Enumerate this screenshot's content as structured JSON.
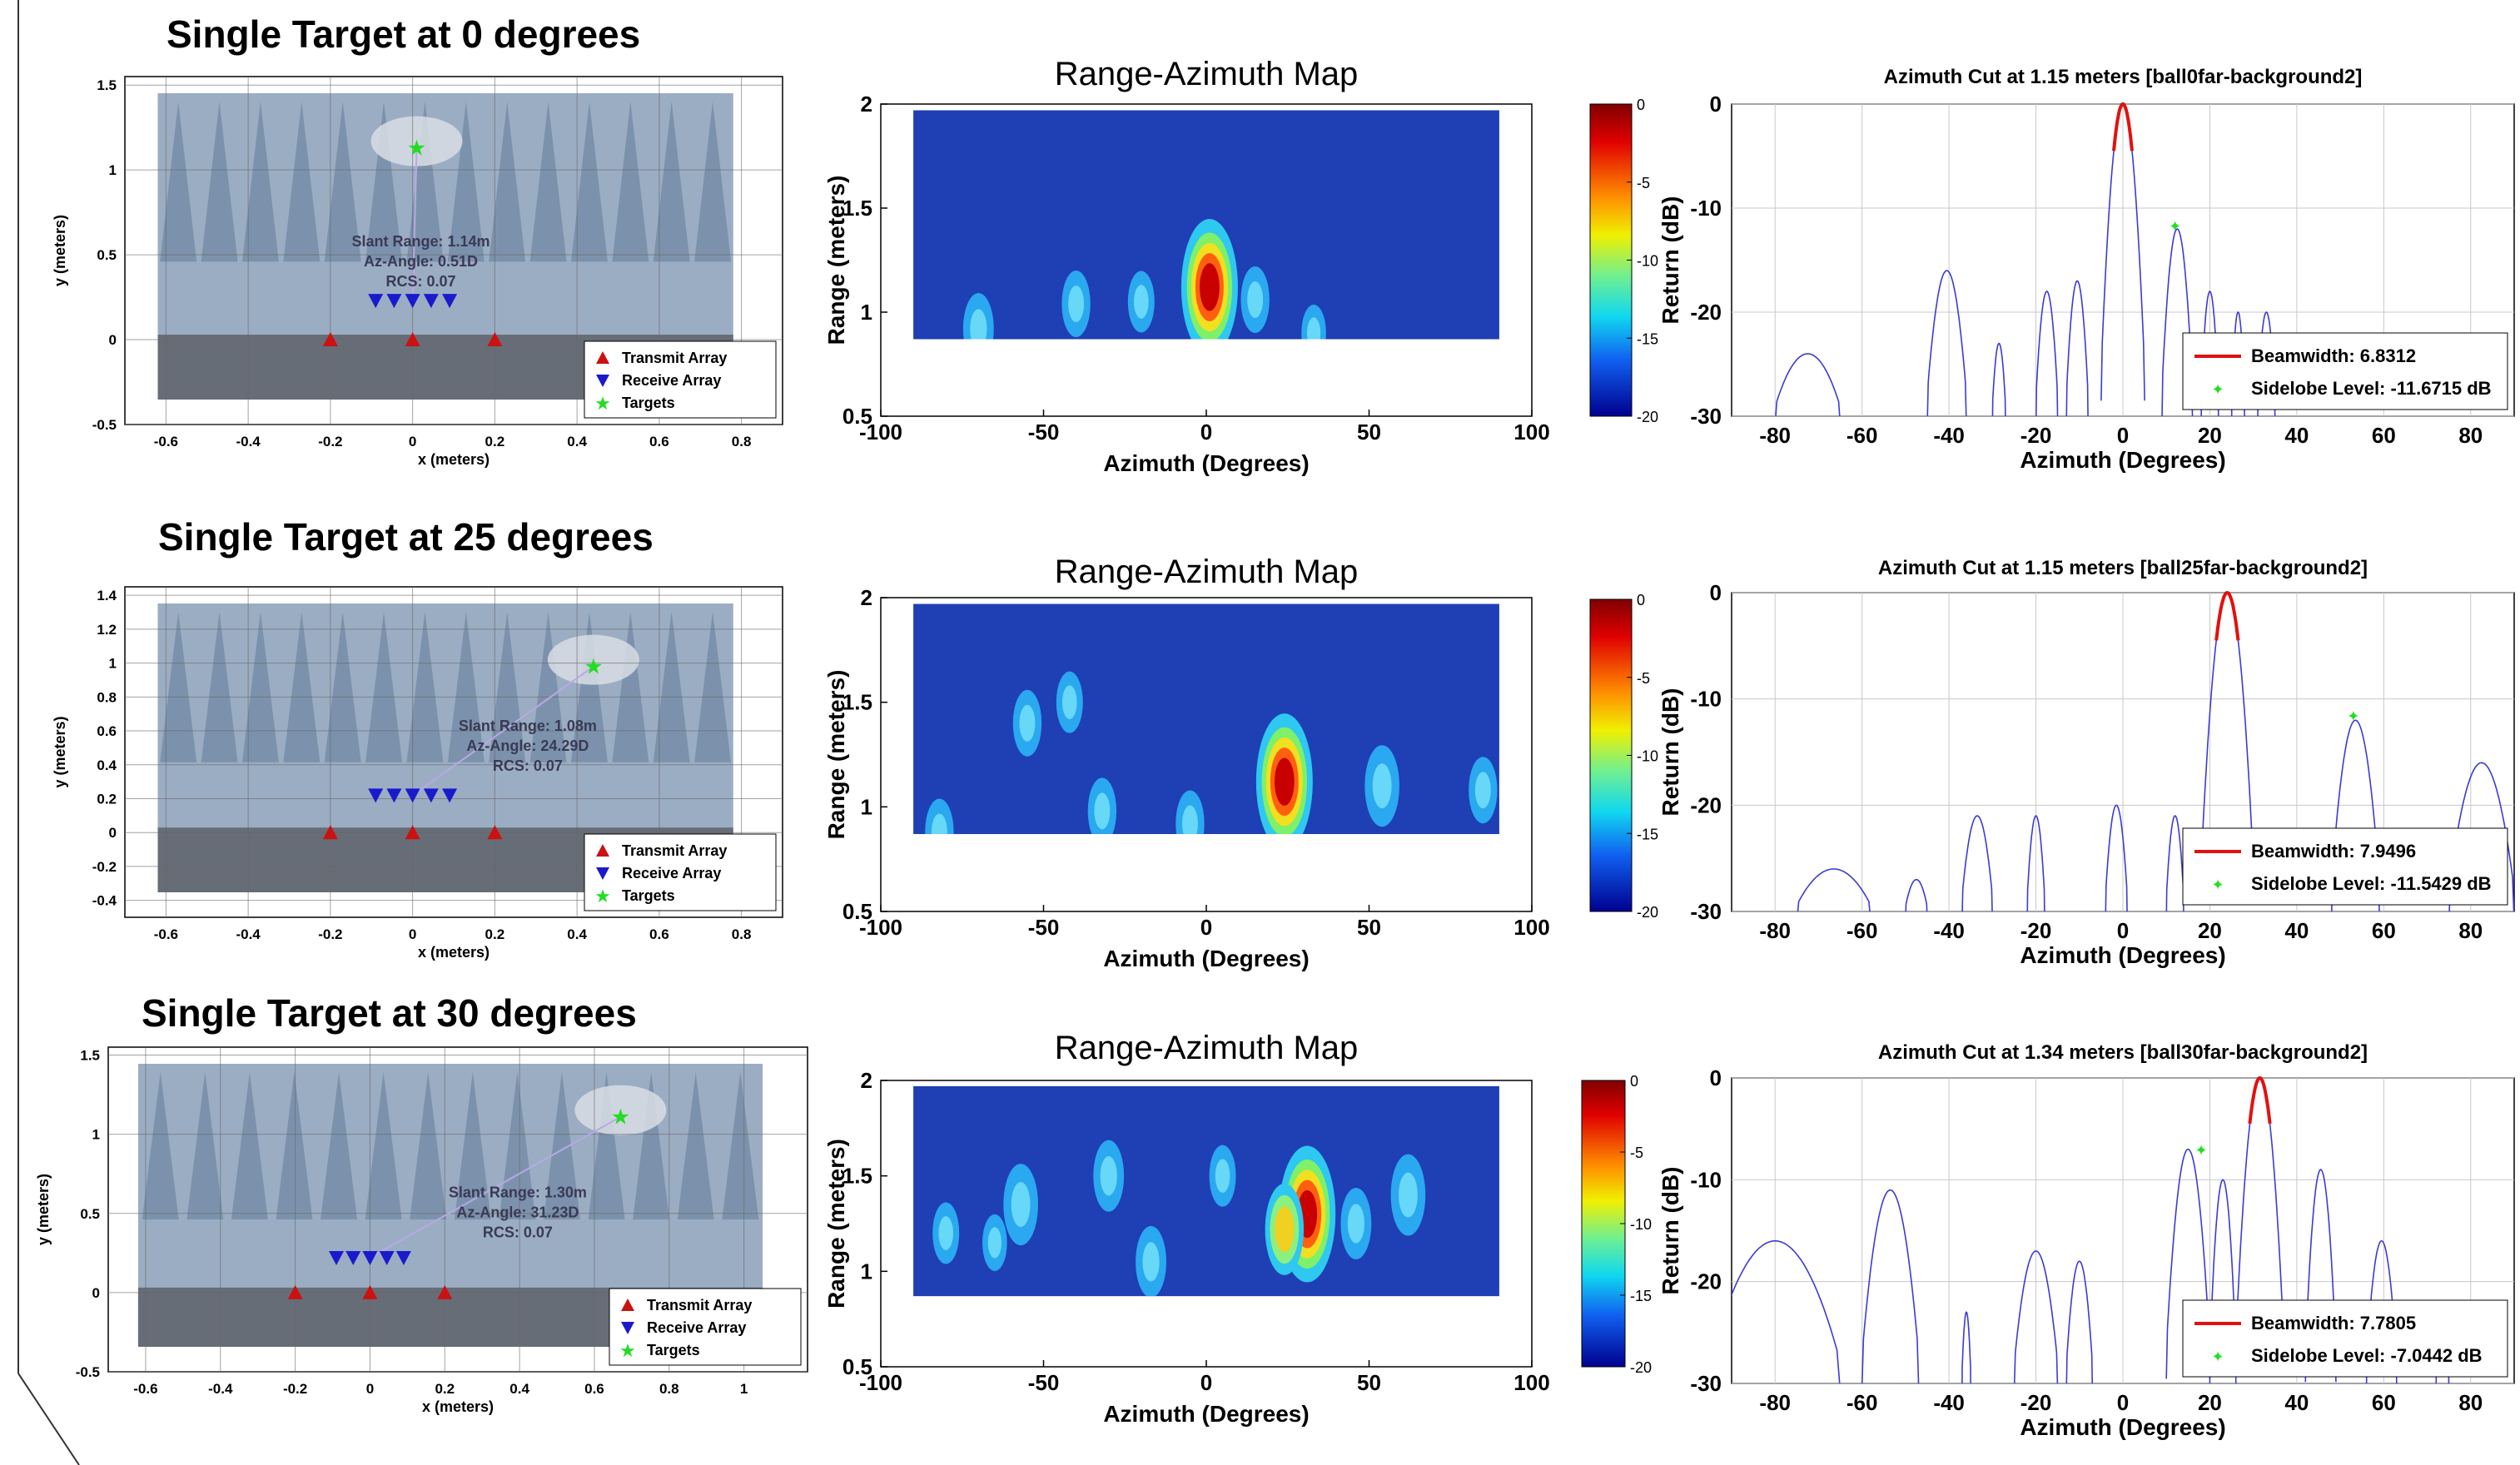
{
  "rows": [
    {
      "title": "Single Target at 0 degrees",
      "scene": {
        "xlabel": "x (meters)",
        "ylabel": "y (meters)",
        "xlim": [
          -0.7,
          0.9
        ],
        "ylim": [
          -0.5,
          1.55
        ],
        "xticks": [
          "-0.6",
          "-0.4",
          "-0.2",
          "0",
          "0.2",
          "0.4",
          "0.6",
          "0.8"
        ],
        "xtick_values": [
          -0.6,
          -0.4,
          -0.2,
          0,
          0.2,
          0.4,
          0.6,
          0.8
        ],
        "yticks": [
          "-0.5",
          "0",
          "0.5",
          "1",
          "1.5"
        ],
        "ytick_values": [
          -0.5,
          0,
          0.5,
          1,
          1.5
        ],
        "annotation": [
          "Slant Range: 1.14m",
          "Az-Angle: 0.51D",
          "RCS: 0.07"
        ],
        "legend": [
          "Transmit Array",
          "Receive Array",
          "Targets"
        ],
        "transmit_x": [
          -0.2,
          0,
          0.2
        ],
        "receive_x": [
          -0.09,
          -0.045,
          0,
          0.045,
          0.09
        ],
        "receive_y": 0.23,
        "target": [
          0.01,
          1.13
        ]
      },
      "map": {
        "title": "Range-Azimuth Map",
        "xlabel": "Azimuth (Degrees)",
        "ylabel": "Range (meters)",
        "xticks": [
          "-100",
          "-50",
          "0",
          "50",
          "100"
        ],
        "yticks": [
          "0.5",
          "1",
          "1.5",
          "2"
        ],
        "colorbar_ticks": [
          "0",
          "-5",
          "-10",
          "-15",
          "-20"
        ],
        "blobs": [
          {
            "az": 1,
            "r": 1.12,
            "level": 1.0
          },
          {
            "az": -70,
            "r": 0.92,
            "level": 0.35
          },
          {
            "az": -40,
            "r": 1.04,
            "level": 0.3
          },
          {
            "az": -20,
            "r": 1.05,
            "level": 0.25
          },
          {
            "az": 15,
            "r": 1.06,
            "level": 0.3
          },
          {
            "az": 33,
            "r": 0.9,
            "level": 0.2
          }
        ]
      },
      "cut": {
        "title": "Azimuth Cut at 1.15 meters [ball0far-background2]",
        "xlabel": "Azimuth (Degrees)",
        "ylabel": "Return (dB)",
        "xticks": [
          "-80",
          "-60",
          "-40",
          "-20",
          "0",
          "20",
          "40",
          "60",
          "80"
        ],
        "yticks": [
          "0",
          "-10",
          "-20",
          "-30"
        ],
        "legend_beamwidth": "Beamwidth: 6.8312",
        "legend_sidelobe": "Sidelobe Level: -11.6715 dB",
        "lobes": [
          [
            -80,
            -65,
            -24
          ],
          [
            -45,
            -36,
            -16
          ],
          [
            -30,
            -27,
            -23
          ],
          [
            -20,
            -15,
            -18
          ],
          [
            -13,
            -8,
            -17
          ],
          [
            -5,
            5,
            0
          ],
          [
            9,
            16,
            -12
          ],
          [
            18,
            22,
            -18
          ],
          [
            25,
            28,
            -20
          ],
          [
            31,
            35,
            -20
          ]
        ],
        "main": [
          -5,
          5
        ],
        "sidelobe": [
          12,
          -11.67
        ]
      }
    },
    {
      "title": "Single Target at 25 degrees",
      "scene": {
        "xlabel": "x (meters)",
        "ylabel": "y (meters)",
        "xlim": [
          -0.7,
          0.9
        ],
        "ylim": [
          -0.5,
          1.45
        ],
        "xticks": [
          "-0.6",
          "-0.4",
          "-0.2",
          "0",
          "0.2",
          "0.4",
          "0.6",
          "0.8"
        ],
        "xtick_values": [
          -0.6,
          -0.4,
          -0.2,
          0,
          0.2,
          0.4,
          0.6,
          0.8
        ],
        "yticks": [
          "-0.4",
          "-0.2",
          "0",
          "0.2",
          "0.4",
          "0.6",
          "0.8",
          "1",
          "1.2",
          "1.4"
        ],
        "ytick_values": [
          -0.4,
          -0.2,
          0,
          0.2,
          0.4,
          0.6,
          0.8,
          1,
          1.2,
          1.4
        ],
        "annotation": [
          "Slant Range: 1.08m",
          "Az-Angle: 24.29D",
          "RCS: 0.07"
        ],
        "legend": [
          "Transmit Array",
          "Receive Array",
          "Targets"
        ],
        "transmit_x": [
          -0.2,
          0,
          0.2
        ],
        "receive_x": [
          -0.09,
          -0.045,
          0,
          0.045,
          0.09
        ],
        "receive_y": 0.22,
        "target": [
          0.44,
          0.98
        ]
      },
      "map": {
        "title": "Range-Azimuth Map",
        "xlabel": "Azimuth (Degrees)",
        "ylabel": "Range (meters)",
        "xticks": [
          "-100",
          "-50",
          "0",
          "50",
          "100"
        ],
        "yticks": [
          "0.5",
          "1",
          "1.5",
          "2"
        ],
        "colorbar_ticks": [
          "0",
          "-5",
          "-10",
          "-15",
          "-20"
        ],
        "blobs": [
          {
            "az": 24,
            "r": 1.12,
            "level": 1.0
          },
          {
            "az": 54,
            "r": 1.1,
            "level": 0.45
          },
          {
            "az": -55,
            "r": 1.4,
            "level": 0.3
          },
          {
            "az": -42,
            "r": 1.5,
            "level": 0.25
          },
          {
            "az": -82,
            "r": 0.88,
            "level": 0.3
          },
          {
            "az": -32,
            "r": 0.98,
            "level": 0.3
          },
          {
            "az": -5,
            "r": 0.92,
            "level": 0.3
          },
          {
            "az": 85,
            "r": 1.08,
            "level": 0.3
          }
        ]
      },
      "cut": {
        "title": "Azimuth Cut at 1.15 meters [ball25far-background2]",
        "xlabel": "Azimuth (Degrees)",
        "ylabel": "Return (dB)",
        "xticks": [
          "-80",
          "-60",
          "-40",
          "-20",
          "0",
          "20",
          "40",
          "60",
          "80"
        ],
        "yticks": [
          "0",
          "-10",
          "-20",
          "-30"
        ],
        "legend_beamwidth": "Beamwidth: 7.9496",
        "legend_sidelobe": "Sidelobe Level: -11.5429 dB",
        "lobes": [
          [
            -75,
            -58,
            -26
          ],
          [
            -50,
            -45,
            -27
          ],
          [
            -37,
            -30,
            -21
          ],
          [
            -22,
            -18,
            -21
          ],
          [
            -4,
            1,
            -20
          ],
          [
            10,
            14,
            -21
          ],
          [
            18,
            30,
            0
          ],
          [
            48,
            59,
            -12
          ],
          [
            75,
            90,
            -16
          ]
        ],
        "main": [
          18,
          30
        ],
        "sidelobe": [
          53,
          -11.54
        ]
      }
    },
    {
      "title": "Single Target at 30 degrees",
      "scene": {
        "xlabel": "x (meters)",
        "ylabel": "y (meters)",
        "xlim": [
          -0.7,
          1.17
        ],
        "ylim": [
          -0.5,
          1.55
        ],
        "xticks": [
          "-0.6",
          "-0.4",
          "-0.2",
          "0",
          "0.2",
          "0.4",
          "0.6",
          "0.8",
          "1"
        ],
        "xtick_values": [
          -0.6,
          -0.4,
          -0.2,
          0,
          0.2,
          0.4,
          0.6,
          0.8,
          1
        ],
        "yticks": [
          "-0.5",
          "0",
          "0.5",
          "1",
          "1.5"
        ],
        "ytick_values": [
          -0.5,
          0,
          0.5,
          1,
          1.5
        ],
        "annotation": [
          "Slant Range: 1.30m",
          "Az-Angle: 31.23D",
          "RCS: 0.07"
        ],
        "legend": [
          "Transmit Array",
          "Receive Array",
          "Targets"
        ],
        "transmit_x": [
          -0.2,
          0,
          0.2
        ],
        "receive_x": [
          -0.09,
          -0.045,
          0,
          0.045,
          0.09
        ],
        "receive_y": 0.22,
        "target": [
          0.67,
          1.11
        ]
      },
      "map": {
        "title": "Range-Azimuth Map",
        "xlabel": "Azimuth (Degrees)",
        "ylabel": "Range (meters)",
        "xticks": [
          "-100",
          "-50",
          "0",
          "50",
          "100"
        ],
        "yticks": [
          "0.5",
          "1",
          "1.5",
          "2"
        ],
        "colorbar_ticks": [
          "0",
          "-5",
          "-10",
          "-15",
          "-20"
        ],
        "blobs": [
          {
            "az": 31,
            "r": 1.3,
            "level": 1.0
          },
          {
            "az": 24,
            "r": 1.22,
            "level": 0.55
          },
          {
            "az": -57,
            "r": 1.35,
            "level": 0.45
          },
          {
            "az": -30,
            "r": 1.5,
            "level": 0.35
          },
          {
            "az": -17,
            "r": 1.05,
            "level": 0.35
          },
          {
            "az": 46,
            "r": 1.25,
            "level": 0.35
          },
          {
            "az": 62,
            "r": 1.4,
            "level": 0.45
          },
          {
            "az": -80,
            "r": 1.2,
            "level": 0.25
          },
          {
            "az": -65,
            "r": 1.15,
            "level": 0.2
          },
          {
            "az": 5,
            "r": 1.5,
            "level": 0.25
          }
        ]
      },
      "cut": {
        "title": "Azimuth Cut at 1.34 meters [ball30far-background2]",
        "xlabel": "Azimuth (Degrees)",
        "ylabel": "Return (dB)",
        "xticks": [
          "-80",
          "-60",
          "-40",
          "-20",
          "0",
          "20",
          "40",
          "60",
          "80"
        ],
        "yticks": [
          "0",
          "-10",
          "-20",
          "-30"
        ],
        "legend_beamwidth": "Beamwidth: 7.7805",
        "legend_sidelobe": "Sidelobe Level: -7.0442 dB",
        "lobes": [
          [
            -95,
            -65,
            -16
          ],
          [
            -60,
            -47,
            -11
          ],
          [
            -37,
            -35,
            -23
          ],
          [
            -25,
            -15,
            -17
          ],
          [
            -13,
            -7,
            -18
          ],
          [
            10,
            20,
            -7
          ],
          [
            20,
            26,
            -10
          ],
          [
            26,
            37,
            0
          ],
          [
            42,
            49,
            -9
          ],
          [
            56,
            63,
            -16
          ],
          [
            72,
            75,
            -26
          ]
        ],
        "main": [
          27,
          35
        ],
        "sidelobe": [
          18,
          -7.04
        ]
      }
    }
  ],
  "colors": {
    "transmit": "#cc1111",
    "receive": "#1a1acc",
    "target": "#22dd22",
    "cut_line": "#3b3bd6",
    "main_lobe": "#e21010",
    "map_background": "#1f3fb4",
    "grid": "#c8c8c8"
  }
}
